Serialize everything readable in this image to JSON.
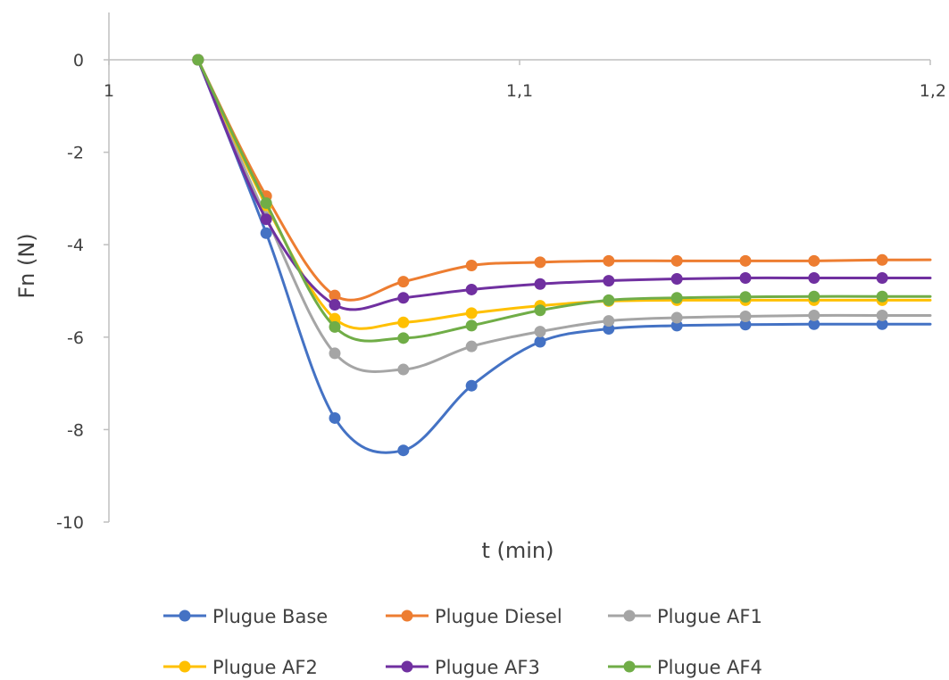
{
  "chart_data": {
    "type": "line",
    "title": "",
    "xlabel": "t (min)",
    "ylabel": "Fn (N)",
    "xlim": [
      1,
      1.2
    ],
    "ylim": [
      -10,
      0
    ],
    "x_ticks": [
      1,
      1.1,
      1.2
    ],
    "x_tick_labels": [
      "1",
      "1,1",
      "1,2"
    ],
    "y_ticks": [
      0,
      -2,
      -4,
      -6,
      -8,
      -10
    ],
    "y_tick_labels": [
      "0",
      "-2",
      "-4",
      "-6",
      "-8",
      "-10"
    ],
    "grid": false,
    "legend_position": "bottom",
    "x": [
      1.0217,
      1.0383,
      1.055,
      1.0717,
      1.0883,
      1.105,
      1.1217,
      1.1383,
      1.155,
      1.1717,
      1.1883
    ],
    "series": [
      {
        "name": "Plugue Base",
        "color": "#4472C4",
        "values": [
          0,
          -3.75,
          -7.75,
          -8.45,
          -7.05,
          -6.1,
          -5.82,
          -5.75,
          -5.73,
          -5.72,
          -5.72
        ]
      },
      {
        "name": "Plugue Diesel",
        "color": "#ED7D31",
        "values": [
          0,
          -2.95,
          -5.1,
          -4.8,
          -4.45,
          -4.38,
          -4.35,
          -4.35,
          -4.35,
          -4.35,
          -4.33
        ]
      },
      {
        "name": "Plugue AF1",
        "color": "#A5A5A5",
        "values": [
          0,
          -3.4,
          -6.35,
          -6.7,
          -6.2,
          -5.88,
          -5.65,
          -5.58,
          -5.55,
          -5.53,
          -5.53
        ]
      },
      {
        "name": "Plugue AF2",
        "color": "#FFC000",
        "values": [
          0,
          -3.15,
          -5.6,
          -5.68,
          -5.48,
          -5.32,
          -5.22,
          -5.2,
          -5.2,
          -5.2,
          -5.2
        ]
      },
      {
        "name": "Plugue AF3",
        "color": "#7030A0",
        "values": [
          0,
          -3.45,
          -5.3,
          -5.15,
          -4.97,
          -4.85,
          -4.78,
          -4.74,
          -4.72,
          -4.72,
          -4.72
        ]
      },
      {
        "name": "Plugue AF4",
        "color": "#70AD47",
        "values": [
          0,
          -3.1,
          -5.78,
          -6.02,
          -5.75,
          -5.42,
          -5.2,
          -5.15,
          -5.13,
          -5.12,
          -5.12
        ]
      }
    ]
  }
}
